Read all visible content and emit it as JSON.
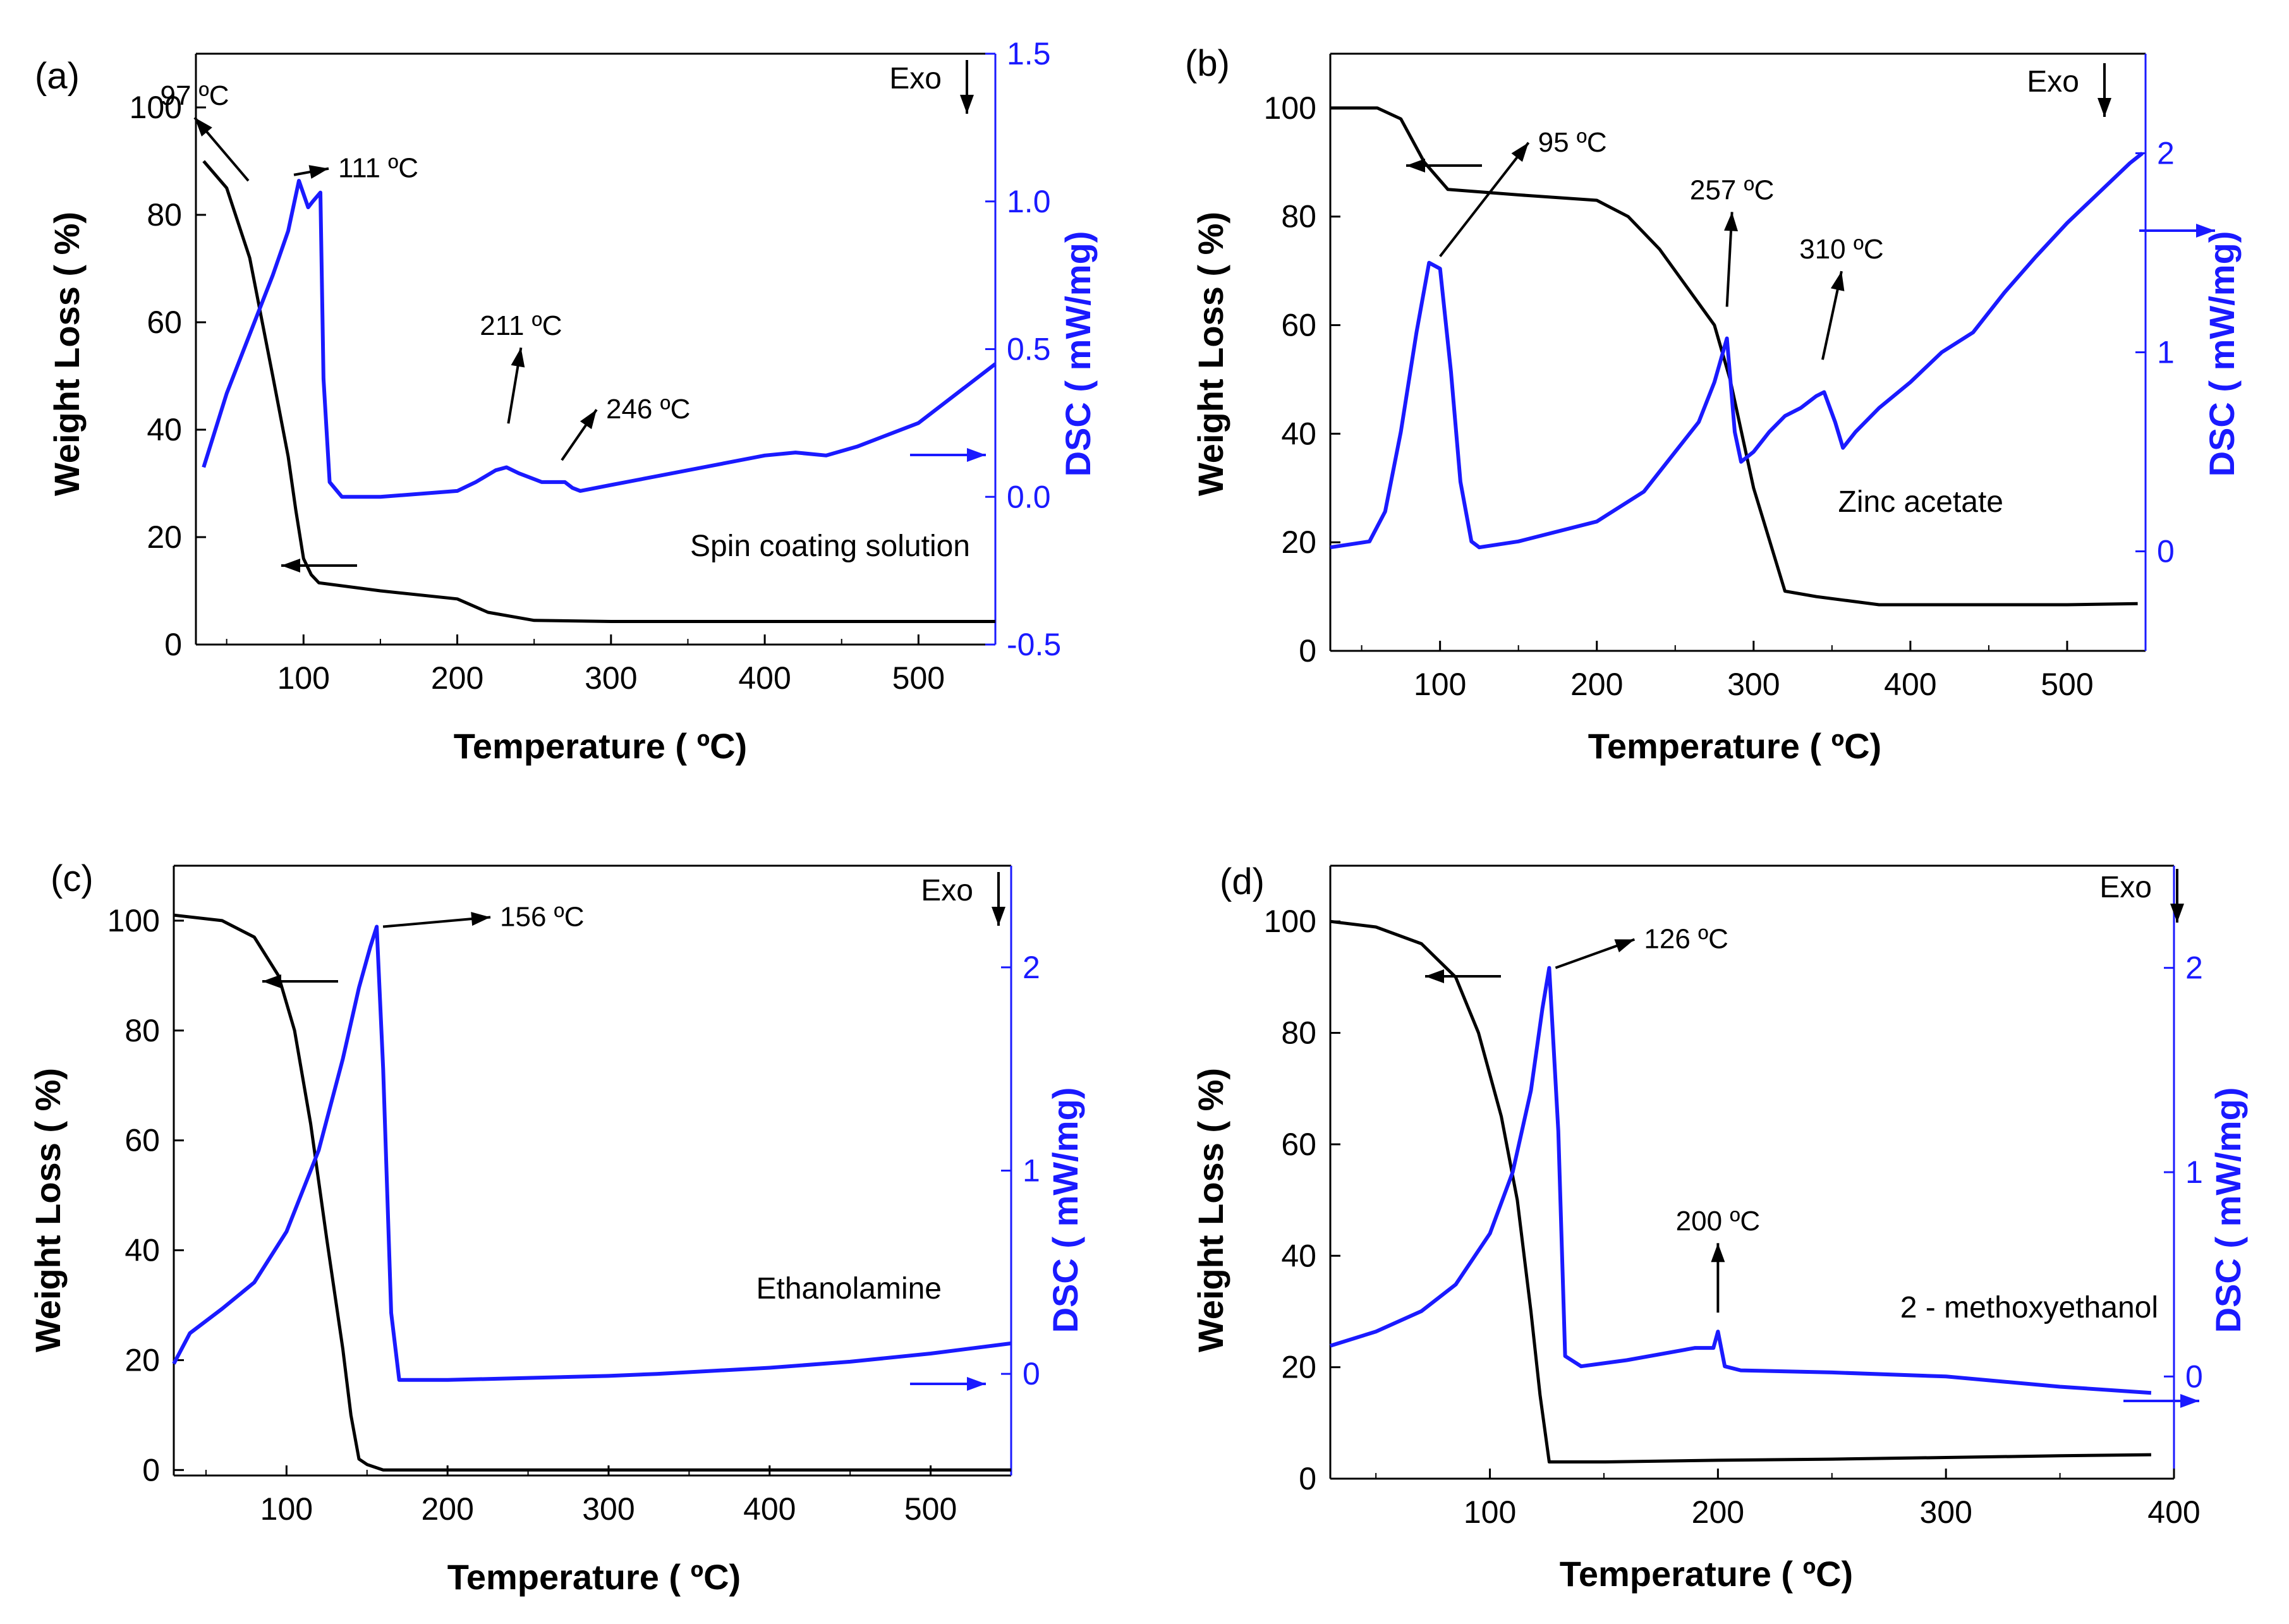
{
  "figure": {
    "common": {
      "xlabel": "Temperature  ( ºC)",
      "ylabel_left": "Weight Loss  ( %)",
      "ylabel_right": "DSC  ( mW/mg)",
      "exo": "Exo"
    }
  },
  "chart_data": [
    {
      "type": "line",
      "panel_label": "(a)",
      "title": "Spin coating solution",
      "xlabel": "Temperature  ( ºC)",
      "ylabel": "Weight Loss  ( %)",
      "y2label": "DSC  ( mW/mg)",
      "exo_label": "Exo",
      "xlim": [
        30,
        550
      ],
      "ylim": [
        0,
        110
      ],
      "y2lim": [
        -0.5,
        1.5
      ],
      "xticks": [
        100,
        200,
        300,
        400,
        500
      ],
      "yticks": [
        0,
        20,
        40,
        60,
        80,
        100
      ],
      "y2ticks": [
        -0.5,
        0.0,
        0.5,
        1.0,
        1.5
      ],
      "y2tick_labels": [
        "-0.5",
        "0.0",
        "0.5",
        "1.0",
        "1.5"
      ],
      "series": [
        {
          "name": "Weight Loss",
          "axis": "left",
          "color": "#000000",
          "x": [
            35,
            50,
            65,
            80,
            90,
            95,
            100,
            105,
            110,
            150,
            200,
            220,
            250,
            300,
            400,
            500,
            550
          ],
          "y": [
            90,
            85,
            72,
            50,
            35,
            25,
            16,
            13,
            11.5,
            10,
            8.5,
            6,
            4.5,
            4.3,
            4.3,
            4.3,
            4.3
          ]
        },
        {
          "name": "DSC",
          "axis": "right",
          "color": "#1a1aff",
          "x": [
            35,
            50,
            65,
            80,
            90,
            97,
            103,
            106,
            111,
            113,
            117,
            125,
            150,
            200,
            212,
            225,
            232,
            240,
            255,
            270,
            275,
            280,
            300,
            350,
            400,
            420,
            440,
            460,
            500,
            550
          ],
          "y": [
            0.1,
            0.35,
            0.55,
            0.75,
            0.9,
            1.07,
            0.98,
            1.0,
            1.03,
            0.4,
            0.05,
            0.0,
            0.0,
            0.02,
            0.05,
            0.09,
            0.1,
            0.08,
            0.05,
            0.05,
            0.03,
            0.02,
            0.04,
            0.09,
            0.14,
            0.15,
            0.14,
            0.17,
            0.25,
            0.45
          ]
        }
      ],
      "annotations": [
        {
          "text": "97 ºC",
          "x": 97,
          "y2": 1.07
        },
        {
          "text": "111 ºC",
          "x": 111,
          "y2": 1.03
        },
        {
          "text": "211 ºC",
          "x": 225,
          "y2": 0.12
        },
        {
          "text": "246 ºC",
          "x": 268,
          "y2": 0.06
        }
      ]
    },
    {
      "type": "line",
      "panel_label": "(b)",
      "title": "Zinc acetate",
      "xlabel": "Temperature  ( ºC)",
      "ylabel": "Weight Loss  ( %)",
      "y2label": "DSC  ( mW/mg)",
      "exo_label": "Exo",
      "xlim": [
        30,
        550
      ],
      "ylim": [
        0,
        110
      ],
      "y2lim": [
        -0.5,
        2.5
      ],
      "xticks": [
        100,
        200,
        300,
        400,
        500
      ],
      "yticks": [
        0,
        20,
        40,
        60,
        80,
        100
      ],
      "y2ticks": [
        0,
        1,
        2
      ],
      "y2tick_labels": [
        "0",
        "1",
        "2"
      ],
      "series": [
        {
          "name": "Weight Loss",
          "axis": "left",
          "color": "#000000",
          "x": [
            30,
            60,
            75,
            90,
            105,
            150,
            200,
            220,
            240,
            260,
            275,
            285,
            300,
            320,
            340,
            380,
            400,
            450,
            500,
            545
          ],
          "y": [
            100,
            100,
            98,
            90,
            85,
            84,
            83,
            80,
            74,
            66,
            60,
            50,
            30,
            11,
            10,
            8.5,
            8.5,
            8.5,
            8.5,
            8.7
          ]
        },
        {
          "name": "DSC",
          "axis": "right",
          "color": "#1a1aff",
          "x": [
            30,
            55,
            65,
            75,
            85,
            93,
            100,
            107,
            113,
            120,
            125,
            150,
            200,
            230,
            250,
            265,
            275,
            283,
            288,
            292,
            300,
            310,
            320,
            330,
            340,
            345,
            352,
            357,
            365,
            380,
            400,
            420,
            440,
            460,
            480,
            500,
            520,
            540,
            548
          ],
          "y": [
            0.02,
            0.05,
            0.2,
            0.6,
            1.1,
            1.45,
            1.42,
            0.9,
            0.35,
            0.05,
            0.02,
            0.05,
            0.15,
            0.3,
            0.5,
            0.65,
            0.85,
            1.07,
            0.6,
            0.45,
            0.5,
            0.6,
            0.68,
            0.72,
            0.78,
            0.8,
            0.65,
            0.52,
            0.6,
            0.72,
            0.85,
            1.0,
            1.1,
            1.3,
            1.48,
            1.65,
            1.8,
            1.95,
            2.0
          ]
        }
      ],
      "annotations": [
        {
          "text": "95 ºC",
          "x": 100,
          "y2": 1.45
        },
        {
          "text": "257 ºC",
          "x": 283,
          "y2": 1.07
        },
        {
          "text": "310 ºC",
          "x": 344,
          "y2": 0.82
        }
      ]
    },
    {
      "type": "line",
      "panel_label": "(c)",
      "title": "Ethanolamine",
      "xlabel": "Temperature  ( ºC)",
      "ylabel": "Weight Loss  ( %)",
      "y2label": "DSC  ( mW/mg)",
      "exo_label": "Exo",
      "xlim": [
        30,
        550
      ],
      "ylim": [
        -1,
        110
      ],
      "y2lim": [
        -0.5,
        2.5
      ],
      "xticks": [
        100,
        200,
        300,
        400,
        500
      ],
      "yticks": [
        0,
        20,
        40,
        60,
        80,
        100
      ],
      "y2ticks": [
        0,
        1,
        2
      ],
      "y2tick_labels": [
        "0",
        "1",
        "2"
      ],
      "series": [
        {
          "name": "Weight Loss",
          "axis": "left",
          "color": "#000000",
          "x": [
            30,
            60,
            80,
            95,
            105,
            115,
            125,
            135,
            140,
            145,
            150,
            160,
            200,
            300,
            400,
            500,
            550
          ],
          "y": [
            101,
            100,
            97,
            90,
            80,
            63,
            42,
            22,
            10,
            2,
            1,
            0,
            0,
            0,
            0,
            0,
            0
          ]
        },
        {
          "name": "DSC",
          "axis": "right",
          "color": "#1a1aff",
          "x": [
            30,
            40,
            60,
            80,
            100,
            120,
            135,
            145,
            152,
            156,
            160,
            165,
            170,
            200,
            250,
            300,
            330,
            400,
            450,
            500,
            550
          ],
          "y": [
            0.05,
            0.2,
            0.32,
            0.45,
            0.7,
            1.1,
            1.55,
            1.9,
            2.1,
            2.2,
            1.5,
            0.3,
            -0.03,
            -0.03,
            -0.02,
            -0.01,
            0.0,
            0.03,
            0.06,
            0.1,
            0.15
          ]
        }
      ],
      "annotations": [
        {
          "text": "156 ºC",
          "x": 156,
          "y2": 2.2
        }
      ]
    },
    {
      "type": "line",
      "panel_label": "(d)",
      "title": "2 - methoxyethanol",
      "xlabel": "Temperature  ( ºC)",
      "ylabel": "Weight Loss  ( %)",
      "y2label": "DSC  ( mW/mg)",
      "exo_label": "Exo",
      "xlim": [
        30,
        400
      ],
      "ylim": [
        0,
        110
      ],
      "y2lim": [
        -0.5,
        2.5
      ],
      "xticks": [
        100,
        200,
        300,
        400
      ],
      "yticks": [
        0,
        20,
        40,
        60,
        80,
        100
      ],
      "y2ticks": [
        0,
        1,
        2
      ],
      "y2tick_labels": [
        "0",
        "1",
        "2"
      ],
      "series": [
        {
          "name": "Weight Loss",
          "axis": "left",
          "color": "#000000",
          "x": [
            30,
            50,
            70,
            85,
            95,
            105,
            112,
            118,
            122,
            126,
            130,
            150,
            200,
            250,
            300,
            350,
            390
          ],
          "y": [
            100,
            99,
            96,
            90,
            80,
            65,
            50,
            30,
            15,
            3,
            3,
            3,
            3.3,
            3.5,
            3.8,
            4.1,
            4.3
          ]
        },
        {
          "name": "DSC",
          "axis": "right",
          "color": "#1a1aff",
          "x": [
            30,
            50,
            70,
            85,
            100,
            110,
            118,
            123,
            126,
            130,
            133,
            140,
            160,
            190,
            198,
            200,
            203,
            210,
            250,
            300,
            350,
            390
          ],
          "y": [
            0.15,
            0.22,
            0.32,
            0.45,
            0.7,
            1.0,
            1.4,
            1.8,
            2.0,
            1.2,
            0.1,
            0.05,
            0.08,
            0.14,
            0.14,
            0.22,
            0.05,
            0.03,
            0.02,
            0.0,
            -0.05,
            -0.08
          ]
        }
      ],
      "annotations": [
        {
          "text": "126 ºC",
          "x": 126,
          "y2": 2.0
        },
        {
          "text": "200 ºC",
          "x": 200,
          "y2": 0.22
        }
      ]
    }
  ]
}
